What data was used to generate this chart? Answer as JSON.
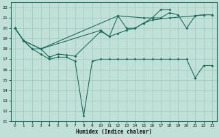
{
  "xlabel": "Humidex (Indice chaleur)",
  "background_color": "#c0e0d8",
  "grid_color": "#a0c8be",
  "line_color": "#1a6b5a",
  "xlim": [
    -0.5,
    23.5
  ],
  "ylim": [
    11,
    22.5
  ],
  "xticks": [
    0,
    1,
    2,
    3,
    4,
    5,
    6,
    7,
    8,
    9,
    10,
    11,
    12,
    13,
    14,
    15,
    16,
    17,
    18,
    19,
    20,
    21,
    22,
    23
  ],
  "yticks": [
    11,
    12,
    13,
    14,
    15,
    16,
    17,
    18,
    19,
    20,
    21,
    22
  ],
  "s1_x": [
    0,
    1,
    2,
    3,
    4,
    5,
    6,
    7,
    8,
    9,
    10,
    11,
    12,
    13,
    14,
    15,
    16,
    17,
    18,
    19,
    20,
    21,
    22,
    23
  ],
  "s1_y": [
    20,
    18.8,
    18,
    17.5,
    17,
    17.2,
    17.2,
    16.8,
    11.5,
    16.8,
    17,
    17,
    17,
    17,
    17,
    17,
    17,
    17,
    17,
    17,
    17,
    15.2,
    16.4,
    16.4
  ],
  "s2_x": [
    0,
    1,
    2,
    3,
    4,
    5,
    6,
    7,
    10,
    11,
    12,
    13,
    14,
    15,
    16,
    18,
    21,
    22,
    23
  ],
  "s2_y": [
    20,
    18.8,
    18,
    18,
    17.2,
    17.5,
    17.4,
    17.3,
    19.7,
    19.2,
    19.5,
    19.8,
    20,
    20.5,
    20.8,
    21,
    21.2,
    21.3,
    21.3
  ],
  "s3_x": [
    0,
    1,
    3,
    10,
    11,
    12,
    13,
    14,
    15,
    16,
    17,
    18,
    19,
    20,
    21,
    22,
    23
  ],
  "s3_y": [
    20,
    18.8,
    18,
    19.8,
    19.2,
    21.2,
    20,
    20,
    20.5,
    21,
    21,
    21.5,
    21.3,
    20,
    21.2,
    21.3,
    21.3
  ],
  "s4_x": [
    0,
    1,
    3,
    12,
    15,
    16,
    17,
    18
  ],
  "s4_y": [
    20,
    18.8,
    18,
    21.2,
    21,
    21,
    21.8,
    21.8
  ]
}
